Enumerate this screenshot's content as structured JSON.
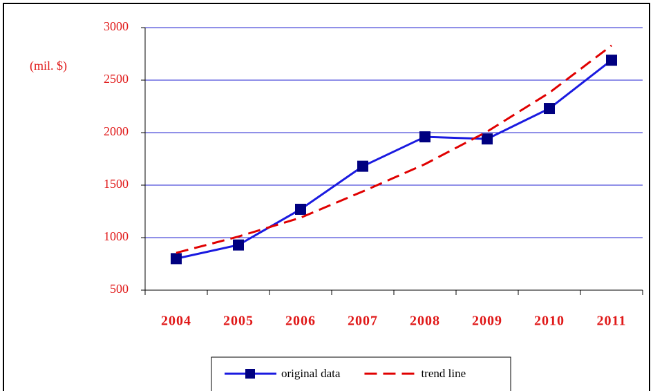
{
  "chart_data": {
    "type": "line",
    "y_unit_label": "(mil. $)",
    "categories": [
      "2004",
      "2005",
      "2006",
      "2007",
      "2008",
      "2009",
      "2010",
      "2011"
    ],
    "series": [
      {
        "name": "original data",
        "color": "#1a1ae0",
        "marker_color": "#000080",
        "dashed": false,
        "marker": true,
        "values": [
          800,
          930,
          1270,
          1680,
          1960,
          1940,
          2230,
          2690
        ]
      },
      {
        "name": "trend line",
        "color": "#e00000",
        "dashed": true,
        "marker": false,
        "values": [
          855,
          1010,
          1190,
          1440,
          1700,
          2010,
          2380,
          2830
        ]
      }
    ],
    "ylim": [
      500,
      3000
    ],
    "yticks": [
      500,
      1000,
      1500,
      2000,
      2500,
      3000
    ],
    "grid": true,
    "grid_color": "#2020d0",
    "label_color": "#e01818",
    "legend": "bottom"
  }
}
